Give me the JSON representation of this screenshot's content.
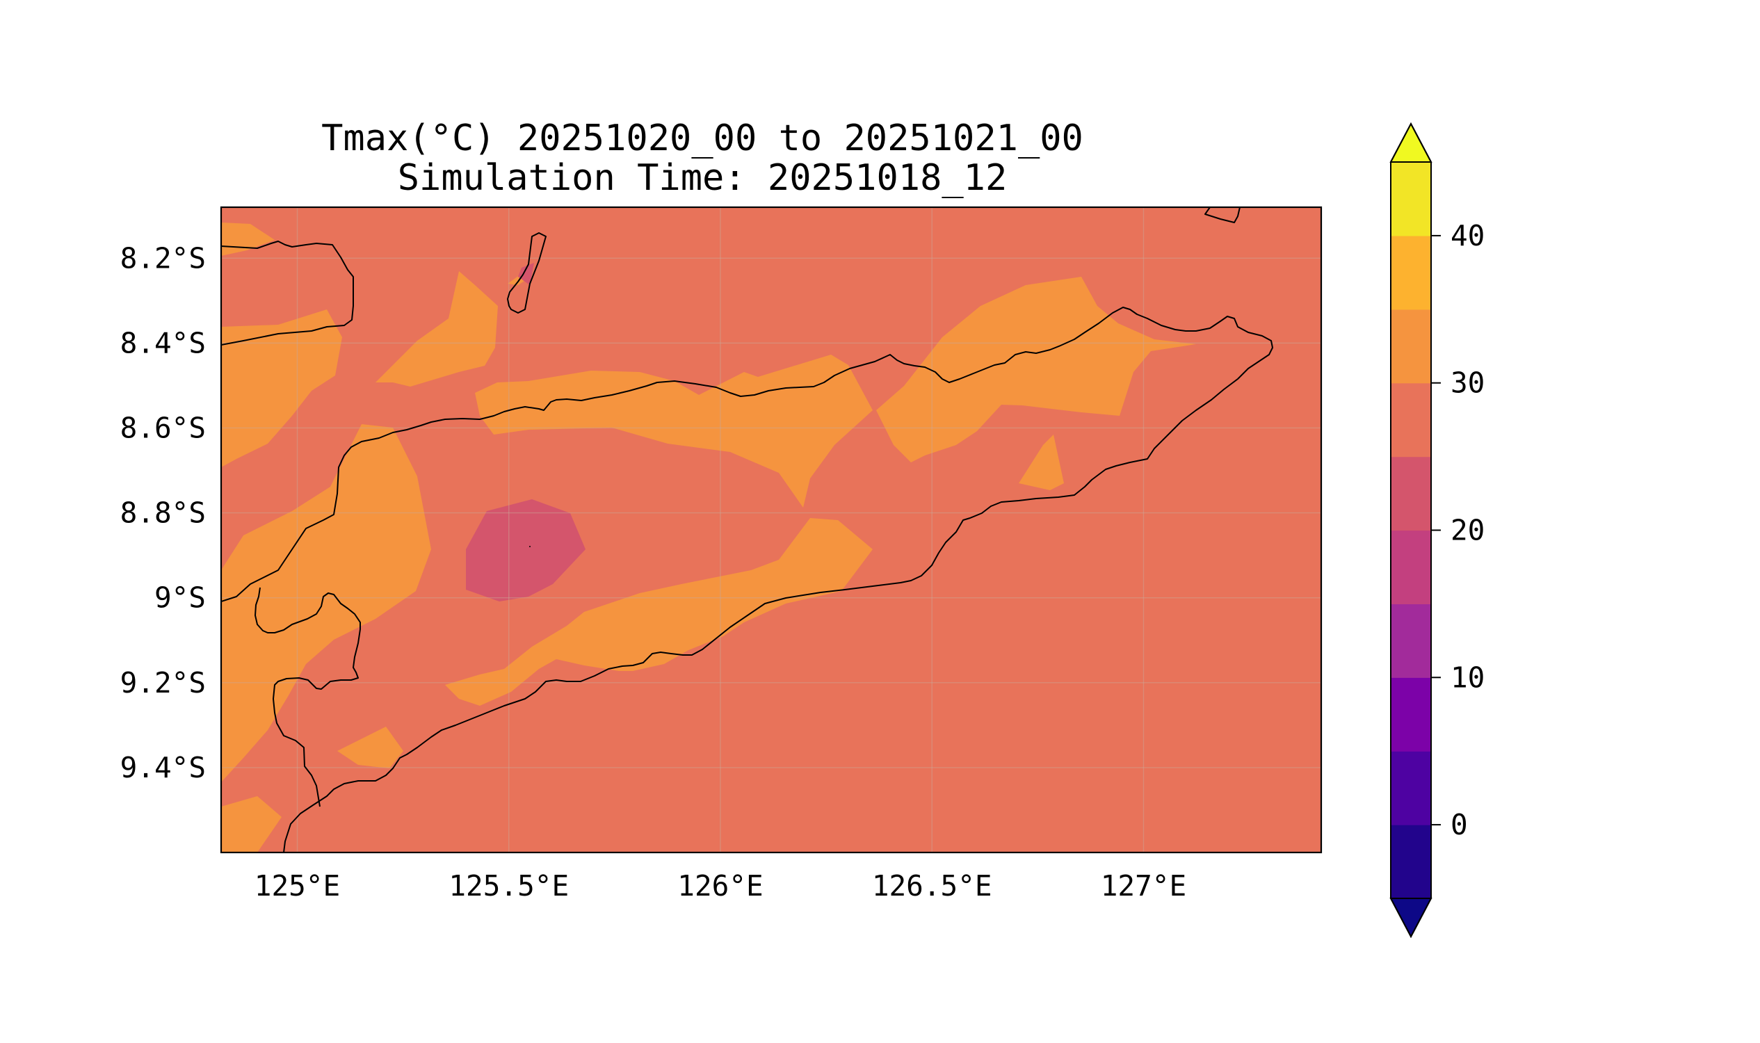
{
  "title": {
    "line1": "Tmax(°C) 20251020_00 to 20251021_00",
    "line2": "Simulation Time: 20251018_12"
  },
  "map": {
    "lon_range": [
      124.82,
      127.42
    ],
    "lat_range": [
      -9.6,
      -8.08
    ],
    "x_ticks": [
      {
        "value": 125.0,
        "label": "125°E"
      },
      {
        "value": 125.5,
        "label": "125.5°E"
      },
      {
        "value": 126.0,
        "label": "126°E"
      },
      {
        "value": 126.5,
        "label": "126.5°E"
      },
      {
        "value": 127.0,
        "label": "127°E"
      }
    ],
    "y_ticks": [
      {
        "value": -8.2,
        "label": "8.2°S"
      },
      {
        "value": -8.4,
        "label": "8.4°S"
      },
      {
        "value": -8.6,
        "label": "8.6°S"
      },
      {
        "value": -8.8,
        "label": "8.8°S"
      },
      {
        "value": -9.0,
        "label": "9°S"
      },
      {
        "value": -9.2,
        "label": "9.2°S"
      },
      {
        "value": -9.4,
        "label": "9.4°S"
      }
    ],
    "fill_colors": {
      "temp_25_30": "#e8735a",
      "temp_30_35": "#f5943f",
      "temp_20_25": "#d4556c"
    }
  },
  "colorbar": {
    "levels": [
      -5,
      0,
      5,
      10,
      15,
      20,
      25,
      30,
      35,
      40,
      45
    ],
    "colors": [
      "#22048c",
      "#4e02a2",
      "#7c02a8",
      "#a22b9b",
      "#c3407f",
      "#d4556c",
      "#e8735a",
      "#f5943f",
      "#fdb22f",
      "#f2e526"
    ],
    "under_color": "#0d0887",
    "over_color": "#f0f921",
    "tick_labels": [
      "0",
      "10",
      "20",
      "30",
      "40"
    ],
    "tick_values": [
      0,
      10,
      20,
      30,
      40
    ]
  }
}
